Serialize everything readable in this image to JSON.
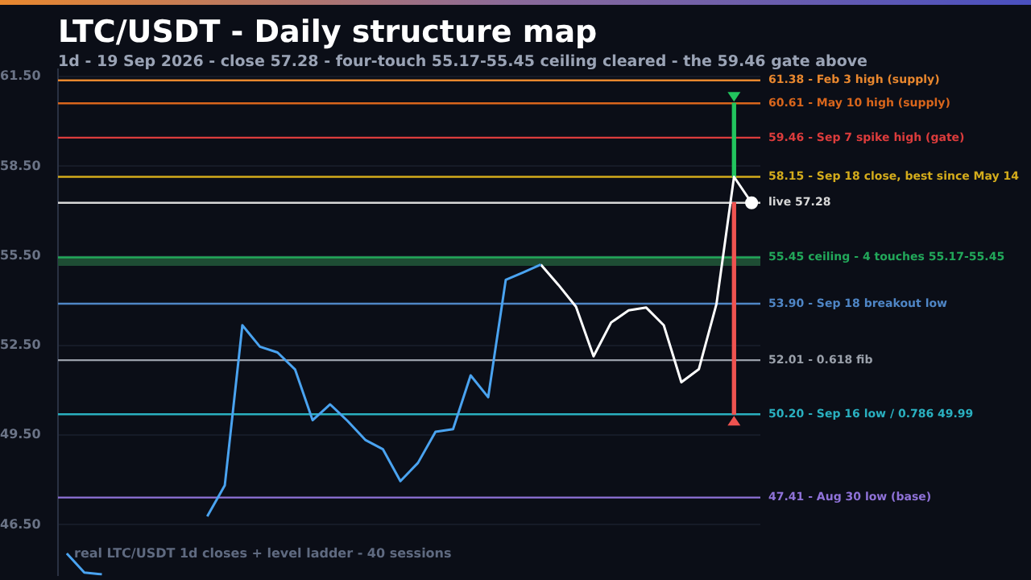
{
  "chart_data": {
    "type": "line",
    "title": "LTC/USDT - Daily structure map",
    "subtitle": "1d - 19 Sep 2026 - close 57.28 - four-touch 55.17-55.45 ceiling cleared - the 59.46 gate above",
    "annotations": [
      "real LTC/USDT 1d closes + level ladder - 40 sessions"
    ],
    "categories": [
      null,
      null,
      null,
      null,
      null,
      null,
      null,
      null,
      null,
      null,
      null,
      null,
      null,
      null,
      null,
      null,
      null,
      null,
      null,
      null,
      null,
      null,
      null,
      null,
      null,
      null,
      null,
      null,
      null,
      null,
      null,
      null,
      null,
      null,
      null,
      null,
      null,
      null,
      null,
      null
    ],
    "series": [
      {
        "color": "#4aa3f0",
        "values": [
          45.54,
          44.9,
          44.84,
          null,
          null,
          null,
          null,
          null,
          46.78,
          47.82,
          53.18,
          52.46,
          52.27,
          51.7,
          50.0,
          50.53,
          49.97,
          49.34,
          49.03,
          47.96,
          48.57,
          49.61,
          49.7,
          51.5,
          50.77,
          54.7,
          54.95,
          55.21,
          null,
          null,
          null,
          null,
          null,
          null,
          null,
          null,
          null,
          null,
          null,
          null
        ]
      },
      {
        "color": "#ffffff",
        "values": [
          null,
          null,
          null,
          null,
          null,
          null,
          null,
          null,
          null,
          null,
          null,
          null,
          null,
          null,
          null,
          null,
          null,
          null,
          null,
          null,
          null,
          null,
          null,
          null,
          null,
          null,
          null,
          55.21,
          54.53,
          53.8,
          52.14,
          53.27,
          53.68,
          53.77,
          53.18,
          51.27,
          51.71,
          53.89,
          58.15,
          57.28
        ]
      },
      {
        "type": "scatter",
        "color": "#ffffff",
        "marker": "circle",
        "values": [
          null,
          null,
          null,
          null,
          null,
          null,
          null,
          null,
          null,
          null,
          null,
          null,
          null,
          null,
          null,
          null,
          null,
          null,
          null,
          null,
          null,
          null,
          null,
          null,
          null,
          null,
          null,
          null,
          null,
          null,
          null,
          null,
          null,
          null,
          null,
          null,
          null,
          null,
          null,
          57.28
        ]
      },
      {
        "type": "bar",
        "color": "#22c55e",
        "marker": "triangle",
        "base": [
          null,
          null,
          null,
          null,
          null,
          null,
          null,
          null,
          null,
          null,
          null,
          null,
          null,
          null,
          null,
          null,
          null,
          null,
          null,
          null,
          null,
          null,
          null,
          null,
          null,
          null,
          null,
          null,
          null,
          null,
          null,
          null,
          null,
          null,
          null,
          null,
          null,
          null,
          58.15,
          null
        ],
        "values": [
          null,
          null,
          null,
          null,
          null,
          null,
          null,
          null,
          null,
          null,
          null,
          null,
          null,
          null,
          null,
          null,
          null,
          null,
          null,
          null,
          null,
          null,
          null,
          null,
          null,
          null,
          null,
          null,
          null,
          null,
          null,
          null,
          null,
          null,
          null,
          null,
          null,
          null,
          2.46,
          null
        ]
      },
      {
        "type": "bar",
        "color": "#ef5350",
        "marker": "triangle",
        "base": [
          null,
          null,
          null,
          null,
          null,
          null,
          null,
          null,
          null,
          null,
          null,
          null,
          null,
          null,
          null,
          null,
          null,
          null,
          null,
          null,
          null,
          null,
          null,
          null,
          null,
          null,
          null,
          null,
          null,
          null,
          null,
          null,
          null,
          null,
          null,
          null,
          null,
          null,
          57.28,
          null
        ],
        "values": [
          null,
          null,
          null,
          null,
          null,
          null,
          null,
          null,
          null,
          null,
          null,
          null,
          null,
          null,
          null,
          null,
          null,
          null,
          null,
          null,
          null,
          null,
          null,
          null,
          null,
          null,
          null,
          null,
          null,
          null,
          null,
          null,
          null,
          null,
          null,
          null,
          null,
          null,
          -7.08,
          null
        ]
      }
    ],
    "ylim": [
      44.8,
      61.75
    ],
    "yticks": [
      {
        "value": 46.5,
        "label": "46.50"
      },
      {
        "value": 49.5,
        "label": "49.50"
      },
      {
        "value": 52.5,
        "label": "52.50"
      },
      {
        "value": 55.5,
        "label": "55.50"
      },
      {
        "value": 58.5,
        "label": "58.50"
      },
      {
        "value": 61.5,
        "label": "61.50"
      }
    ],
    "tick_labels": "y",
    "grid": "y",
    "marker": "none",
    "legend": false,
    "bands": [
      {
        "axis": "y",
        "from": 55.17,
        "to": 55.45,
        "color": "#1e4d34"
      }
    ],
    "ref_lines": [
      {
        "axis": "y",
        "value": 61.38,
        "label": "61.38 - Feb 3 high (supply)",
        "color": "#e8872e"
      },
      {
        "axis": "y",
        "value": 60.61,
        "label": "60.61 - May 10 high (supply)",
        "color": "#d9661c"
      },
      {
        "axis": "y",
        "value": 59.46,
        "label": "59.46 - Sep 7 spike high (gate)",
        "color": "#dc3c3c"
      },
      {
        "axis": "y",
        "value": 58.15,
        "label": "58.15 - Sep 18 close, best since May 14",
        "color": "#d4ac1c"
      },
      {
        "axis": "y",
        "value": 57.28,
        "label": "live 57.28",
        "color": "#d8d8d8"
      },
      {
        "axis": "y",
        "value": 55.45,
        "label": "55.45 ceiling - 4 touches 55.17-55.45",
        "color": "#22a85a"
      },
      {
        "axis": "y",
        "value": 53.9,
        "label": "53.90 - Sep 18 breakout low",
        "color": "#4f86c6"
      },
      {
        "axis": "y",
        "value": 52.01,
        "label": "52.01 - 0.618 fib",
        "color": "#9aa0aa"
      },
      {
        "axis": "y",
        "value": 50.2,
        "label": "50.20 - Sep 16 low / 0.786 49.99",
        "color": "#2ab0c0"
      },
      {
        "axis": "y",
        "value": 47.41,
        "label": "47.41 - Aug 30 low (base)",
        "color": "#8f72d8"
      }
    ]
  }
}
